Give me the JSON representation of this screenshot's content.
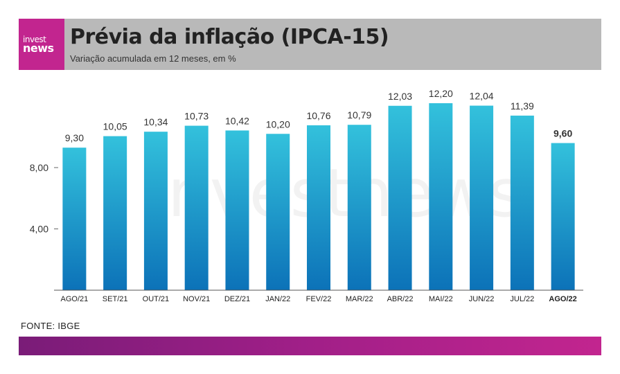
{
  "header": {
    "logo_line1": "invest",
    "logo_line2": "news",
    "title": "Prévia da inflação (IPCA-15)",
    "subtitle": "Variação acumulada em 12 meses, em %"
  },
  "source": "FONTE: IBGE",
  "watermark": "investnews",
  "colors": {
    "brand": "#c2258f",
    "bar_top": "#33c1dc",
    "bar_bottom": "#0c72b8",
    "header_bg": "#b9b9b9"
  },
  "chart_data": {
    "type": "bar",
    "title": "Prévia da inflação (IPCA-15)",
    "subtitle": "Variação acumulada em 12 meses, em %",
    "categories": [
      "AGO/21",
      "SET/21",
      "OUT/21",
      "NOV/21",
      "DEZ/21",
      "JAN/22",
      "FEV/22",
      "MAR/22",
      "ABR/22",
      "MAI/22",
      "JUN/22",
      "JUL/22",
      "AGO/22"
    ],
    "values": [
      9.3,
      10.05,
      10.34,
      10.73,
      10.42,
      10.2,
      10.76,
      10.79,
      12.03,
      12.2,
      12.04,
      11.39,
      9.6
    ],
    "value_labels": [
      "9,30",
      "10,05",
      "10,34",
      "10,73",
      "10,42",
      "10,20",
      "10,76",
      "10,79",
      "12,03",
      "12,20",
      "12,04",
      "11,39",
      "9,60"
    ],
    "y_ticks": [
      4,
      8
    ],
    "y_tick_labels": [
      "4,00",
      "8,00"
    ],
    "ylim": [
      0,
      12.2
    ],
    "highlight_category": "AGO/22",
    "grid": false,
    "legend": "none"
  }
}
